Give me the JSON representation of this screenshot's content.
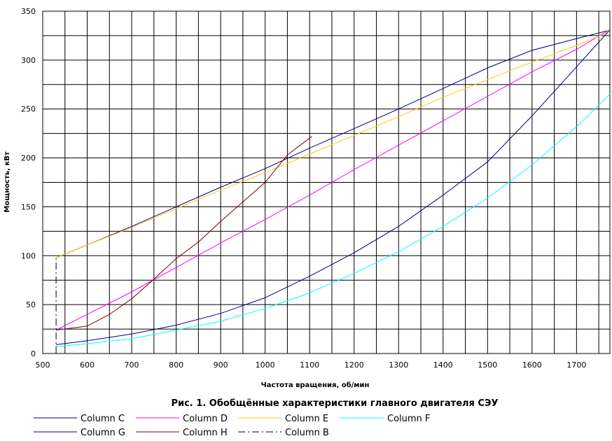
{
  "chart_data": {
    "type": "line",
    "title": "Рис. 1. Обобщённые характеристики главного двигателя СЭУ",
    "xlabel": "Частота вращения, об/мин",
    "ylabel": "Мощность, кВт",
    "xlim": [
      500,
      1775
    ],
    "ylim": [
      0,
      350
    ],
    "x_ticks": [
      500,
      600,
      700,
      800,
      900,
      1000,
      1100,
      1200,
      1300,
      1400,
      1500,
      1600,
      1700
    ],
    "y_ticks": [
      0,
      50,
      100,
      150,
      200,
      250,
      300,
      350
    ],
    "grid": true,
    "legend_position": "bottom",
    "series": [
      {
        "name": "Column C",
        "color": "#000080",
        "dash": "",
        "x": [
          530,
          600,
          700,
          800,
          900,
          1000,
          1100,
          1200,
          1300,
          1400,
          1500,
          1600,
          1700,
          1770
        ],
        "y": [
          98,
          111,
          130,
          150,
          170,
          189,
          210,
          230,
          250,
          271,
          292,
          310,
          322,
          330
        ]
      },
      {
        "name": "Column D",
        "color": "#ff00ff",
        "dash": "",
        "x": [
          530,
          600,
          700,
          800,
          900,
          1000,
          1100,
          1200,
          1300,
          1400,
          1500,
          1600,
          1700,
          1770
        ],
        "y": [
          24,
          40,
          63,
          88,
          113,
          137,
          162,
          188,
          213,
          238,
          263,
          288,
          311,
          330
        ]
      },
      {
        "name": "Column E",
        "color": "#ffcc00",
        "dash": "",
        "x": [
          530,
          600,
          700,
          800,
          900,
          1000,
          1100,
          1200,
          1300,
          1400,
          1500,
          1600,
          1700,
          1770
        ],
        "y": [
          98,
          111,
          129,
          148,
          167,
          185,
          204,
          223,
          242,
          262,
          280,
          298,
          315,
          328
        ]
      },
      {
        "name": "Column F",
        "color": "#00ffff",
        "dash": "",
        "x": [
          530,
          600,
          700,
          800,
          900,
          1000,
          1100,
          1200,
          1300,
          1400,
          1500,
          1600,
          1700,
          1775
        ],
        "y": [
          7,
          10,
          15,
          24,
          33,
          46,
          62,
          82,
          104,
          130,
          159,
          193,
          232,
          265
        ]
      },
      {
        "name": "Column G",
        "color": "#000080",
        "dash": "",
        "x": [
          530,
          600,
          700,
          800,
          900,
          1000,
          1100,
          1200,
          1300,
          1400,
          1500,
          1600,
          1700,
          1775
        ],
        "y": [
          9,
          13,
          20,
          29,
          41,
          57,
          79,
          103,
          130,
          162,
          196,
          243,
          293,
          331
        ]
      },
      {
        "name": "Column H",
        "color": "#800000",
        "dash": "",
        "x": [
          530,
          600,
          650,
          700,
          750,
          800,
          850,
          900,
          950,
          1000,
          1050,
          1105
        ],
        "y": [
          24,
          28,
          40,
          56,
          76,
          97,
          114,
          135,
          155,
          175,
          203,
          222
        ]
      },
      {
        "name": "Column B",
        "color": "#000000",
        "dash": "10,4,2,4",
        "x": [
          530,
          530
        ],
        "y": [
          0,
          98
        ]
      }
    ]
  }
}
